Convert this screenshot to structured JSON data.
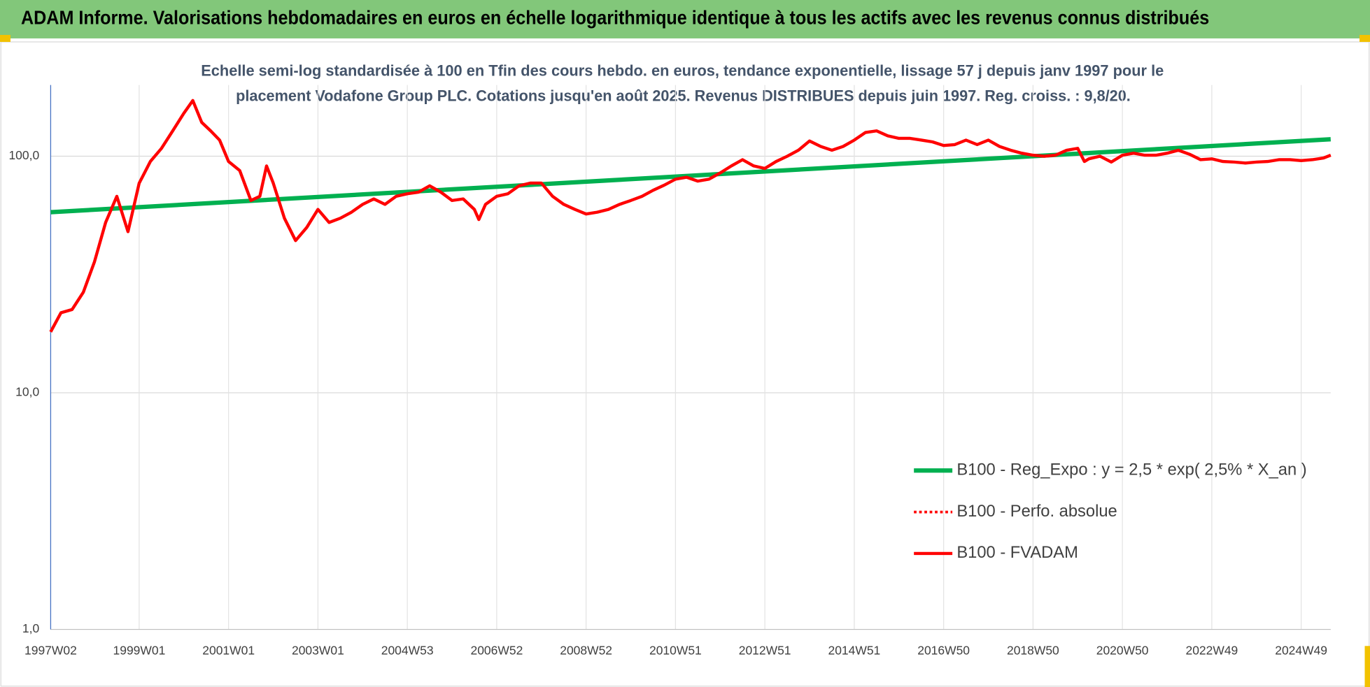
{
  "chart_data": {
    "type": "line",
    "title": "ADAM Informe. Valorisations hebdomadaires en euros en échelle logarithmique identique à tous les actifs avec les revenus connus distribués",
    "subtitle": [
      "Echelle semi-log standardisée à 100 en Tfin des cours hebdo. en euros, tendance exponentielle, lissage 57 j depuis janv 1997 pour le",
      "placement Vodafone Group PLC. Cotations jusqu'en août 2025. Revenus DISTRIBUES depuis juin 1997. Reg. croiss. : 9,8/20."
    ],
    "log_scale": true,
    "grid": true,
    "legend": "right",
    "xlim": [
      1997.02,
      2025.66
    ],
    "xticks": [
      {
        "value": 1997.02,
        "label": "1997W02"
      },
      {
        "value": 1999,
        "label": "1999W01"
      },
      {
        "value": 2001,
        "label": "2001W01"
      },
      {
        "value": 2003,
        "label": "2003W01"
      },
      {
        "value": 2005,
        "label": "2004W53"
      },
      {
        "value": 2007,
        "label": "2006W52"
      },
      {
        "value": 2009,
        "label": "2008W52"
      },
      {
        "value": 2011,
        "label": "2010W51"
      },
      {
        "value": 2013,
        "label": "2012W51"
      },
      {
        "value": 2015,
        "label": "2014W51"
      },
      {
        "value": 2017,
        "label": "2016W50"
      },
      {
        "value": 2019,
        "label": "2018W50"
      },
      {
        "value": 2021,
        "label": "2020W50"
      },
      {
        "value": 2023,
        "label": "2022W49"
      },
      {
        "value": 2025,
        "label": "2024W49"
      }
    ],
    "ylim": [
      1,
      200
    ],
    "yticks": [
      {
        "value": 1,
        "label": "1,0"
      },
      {
        "value": 10,
        "label": "10,0"
      },
      {
        "value": 100,
        "label": "100,0"
      }
    ],
    "x": [
      1997.02,
      1997.25,
      1997.5,
      1997.75,
      1998,
      1998.25,
      1998.5,
      1998.75,
      1999,
      1999.25,
      1999.5,
      1999.75,
      2000,
      2000.2,
      2000.4,
      2000.6,
      2000.8,
      2001,
      2001.25,
      2001.5,
      2001.7,
      2001.85,
      2002,
      2002.25,
      2002.5,
      2002.75,
      2003,
      2003.25,
      2003.5,
      2003.75,
      2004,
      2004.25,
      2004.5,
      2004.75,
      2005,
      2005.25,
      2005.5,
      2005.75,
      2006,
      2006.25,
      2006.5,
      2006.6,
      2006.75,
      2007,
      2007.25,
      2007.5,
      2007.75,
      2008,
      2008.25,
      2008.5,
      2008.75,
      2009,
      2009.25,
      2009.5,
      2009.75,
      2010,
      2010.25,
      2010.5,
      2010.75,
      2011,
      2011.25,
      2011.5,
      2011.75,
      2012,
      2012.25,
      2012.5,
      2012.75,
      2013,
      2013.25,
      2013.5,
      2013.75,
      2014,
      2014.25,
      2014.5,
      2014.75,
      2015,
      2015.25,
      2015.5,
      2015.75,
      2016,
      2016.25,
      2016.5,
      2016.75,
      2017,
      2017.25,
      2017.5,
      2017.75,
      2018,
      2018.25,
      2018.5,
      2018.75,
      2019,
      2019.25,
      2019.5,
      2019.75,
      2020,
      2020.15,
      2020.25,
      2020.5,
      2020.75,
      2021,
      2021.25,
      2021.5,
      2021.75,
      2022,
      2022.25,
      2022.5,
      2022.75,
      2023,
      2023.25,
      2023.5,
      2023.75,
      2024,
      2024.25,
      2024.5,
      2024.75,
      2025,
      2025.25,
      2025.5,
      2025.66
    ],
    "series": [
      {
        "name": "B100 - Reg_Expo : y = 2,5 * exp( 2,5% *  X_an )",
        "color": "#00b050",
        "style": "solid",
        "width": 5,
        "x": [
          1997.02,
          2025.66
        ],
        "values": [
          58,
          118
        ]
      },
      {
        "name": "B100 - Perfo. absolue",
        "color": "#ff0000",
        "style": "dotted",
        "width": 3,
        "values": [
          18.1,
          21.8,
          22.5,
          26.6,
          35.8,
          52.5,
          67.7,
          48,
          76.9,
          95,
          108,
          128,
          152,
          172,
          139,
          128,
          117,
          95,
          87,
          65,
          67.7,
          91,
          77,
          54.7,
          44,
          50,
          59.6,
          52.5,
          54.7,
          58,
          62.6,
          66,
          62.6,
          67.7,
          69.4,
          70.5,
          75,
          70.5,
          65,
          66,
          59.6,
          54,
          62.6,
          67.7,
          69.4,
          75,
          77,
          77,
          67.7,
          62.6,
          59.6,
          57,
          58,
          59.6,
          62.6,
          65,
          67.7,
          71.8,
          75.5,
          80,
          81.5,
          78.5,
          80,
          85,
          91,
          96.7,
          91,
          88.8,
          95,
          100,
          106,
          116,
          110,
          106,
          110,
          117,
          126,
          128,
          122,
          119,
          119,
          117,
          115,
          111,
          112,
          117,
          112,
          117,
          110,
          106,
          103,
          101,
          100,
          101,
          106,
          108,
          95,
          97.5,
          100,
          94.5,
          101,
          103,
          101,
          101,
          103,
          106,
          102,
          96.7,
          97.5,
          95,
          94.5,
          93.6,
          94.5,
          95,
          96.7,
          96.7,
          95.8,
          96.7,
          98.3,
          101
        ]
      },
      {
        "name": "B100 - FVADAM",
        "color": "#ff0000",
        "style": "solid",
        "width": 3.5,
        "values": [
          18.1,
          21.8,
          22.5,
          26.6,
          35.8,
          52.5,
          67.7,
          48,
          76.9,
          95,
          108,
          128,
          152,
          172,
          139,
          128,
          117,
          95,
          87,
          65,
          67.7,
          91,
          77,
          54.7,
          44,
          50,
          59.6,
          52.5,
          54.7,
          58,
          62.6,
          66,
          62.6,
          67.7,
          69.4,
          70.5,
          75,
          70.5,
          65,
          66,
          59.6,
          54,
          62.6,
          67.7,
          69.4,
          75,
          77,
          77,
          67.7,
          62.6,
          59.6,
          57,
          58,
          59.6,
          62.6,
          65,
          67.7,
          71.8,
          75.5,
          80,
          81.5,
          78.5,
          80,
          85,
          91,
          96.7,
          91,
          88.8,
          95,
          100,
          106,
          116,
          110,
          106,
          110,
          117,
          126,
          128,
          122,
          119,
          119,
          117,
          115,
          111,
          112,
          117,
          112,
          117,
          110,
          106,
          103,
          101,
          100,
          101,
          106,
          108,
          95,
          97.5,
          100,
          94.5,
          101,
          103,
          101,
          101,
          103,
          106,
          102,
          96.7,
          97.5,
          95,
          94.5,
          93.6,
          94.5,
          95,
          96.7,
          96.7,
          95.8,
          96.7,
          98.3,
          101
        ]
      }
    ]
  }
}
